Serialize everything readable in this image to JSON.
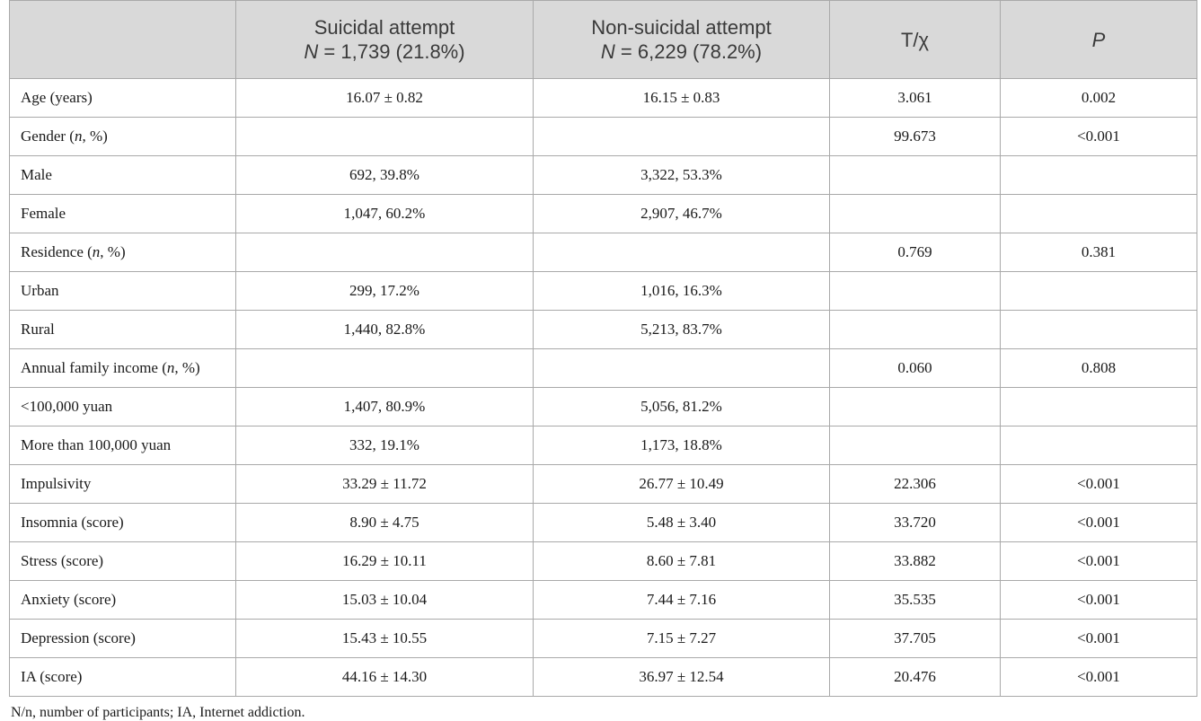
{
  "table": {
    "headers": {
      "col0": "",
      "col1_line1": "Suicidal attempt",
      "col1_n_label": "N",
      "col1_n_value": " = 1,739 (21.8%)",
      "col2_line1": "Non-suicidal attempt",
      "col2_n_label": "N",
      "col2_n_value": " = 6,229 (78.2%)",
      "col3": "T/χ",
      "col4": "P"
    },
    "rows": [
      {
        "label": "Age (years)",
        "sa": "16.07 ± 0.82",
        "nsa": "16.15 ± 0.83",
        "t": "3.061",
        "p": "0.002"
      },
      {
        "label_pre": "Gender (",
        "label_n": "n",
        "label_post": ", %)",
        "sa": "",
        "nsa": "",
        "t": "99.673",
        "p": "<0.001"
      },
      {
        "label": "Male",
        "sa": "692, 39.8%",
        "nsa": "3,322, 53.3%",
        "t": "",
        "p": ""
      },
      {
        "label": "Female",
        "sa": "1,047, 60.2%",
        "nsa": "2,907, 46.7%",
        "t": "",
        "p": ""
      },
      {
        "label_pre": "Residence (",
        "label_n": "n",
        "label_post": ", %)",
        "sa": "",
        "nsa": "",
        "t": "0.769",
        "p": "0.381"
      },
      {
        "label": "Urban",
        "sa": "299, 17.2%",
        "nsa": "1,016, 16.3%",
        "t": "",
        "p": ""
      },
      {
        "label": "Rural",
        "sa": "1,440, 82.8%",
        "nsa": "5,213, 83.7%",
        "t": "",
        "p": ""
      },
      {
        "label_pre": "Annual family income (",
        "label_n": "n",
        "label_post": ", %)",
        "sa": "",
        "nsa": "",
        "t": "0.060",
        "p": "0.808"
      },
      {
        "label": "<100,000 yuan",
        "sa": "1,407, 80.9%",
        "nsa": "5,056, 81.2%",
        "t": "",
        "p": ""
      },
      {
        "label": "More than 100,000 yuan",
        "sa": "332, 19.1%",
        "nsa": "1,173, 18.8%",
        "t": "",
        "p": ""
      },
      {
        "label": "Impulsivity",
        "sa": "33.29 ± 11.72",
        "nsa": "26.77 ± 10.49",
        "t": "22.306",
        "p": "<0.001"
      },
      {
        "label": "Insomnia (score)",
        "sa": "8.90 ± 4.75",
        "nsa": "5.48 ± 3.40",
        "t": "33.720",
        "p": "<0.001"
      },
      {
        "label": "Stress (score)",
        "sa": "16.29 ± 10.11",
        "nsa": "8.60 ± 7.81",
        "t": "33.882",
        "p": "<0.001"
      },
      {
        "label": "Anxiety (score)",
        "sa": "15.03 ± 10.04",
        "nsa": "7.44 ± 7.16",
        "t": "35.535",
        "p": "<0.001"
      },
      {
        "label": "Depression (score)",
        "sa": "15.43 ± 10.55",
        "nsa": "7.15 ± 7.27",
        "t": "37.705",
        "p": "<0.001"
      },
      {
        "label": "IA (score)",
        "sa": "44.16 ± 14.30",
        "nsa": "36.97 ± 12.54",
        "t": "20.476",
        "p": "<0.001"
      }
    ]
  },
  "footnote": "N/n, number of participants; IA, Internet addiction.",
  "colors": {
    "header_bg": "#d9d9d9",
    "border": "#a9a9a9"
  }
}
